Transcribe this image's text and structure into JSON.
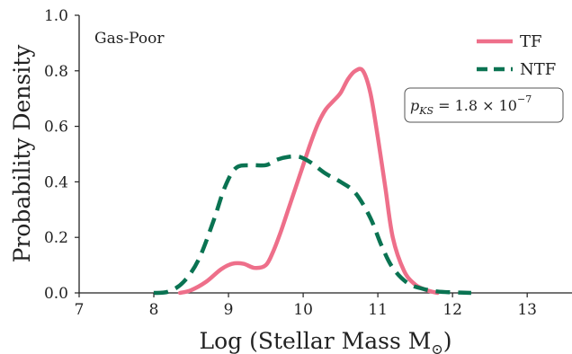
{
  "chart_data": {
    "type": "line",
    "title": "",
    "xlabel": "Log (Stellar Mass M",
    "xlabel_sub": "⊙",
    "xlabel_close": ")",
    "ylabel": "Probability Density",
    "xlim": [
      7,
      13.6
    ],
    "ylim": [
      0.0,
      1.0
    ],
    "xticks": [
      "7",
      "8",
      "9",
      "10",
      "11",
      "12",
      "13"
    ],
    "yticks": [
      "0.0",
      "0.2",
      "0.4",
      "0.6",
      "0.8",
      "1.0"
    ],
    "grid": false,
    "legend_position": "top-right",
    "annotation": "Gas-Poor",
    "stat_box": {
      "lhs": "p",
      "lhs_sub": "KS",
      "rhs": " = 1.8 × 10",
      "rhs_sup": "−7"
    },
    "series": [
      {
        "name": "TF",
        "color": "#ee6f8a",
        "style": "solid",
        "x": [
          8.35,
          8.5,
          8.7,
          8.9,
          9.05,
          9.2,
          9.35,
          9.5,
          9.6,
          9.7,
          9.8,
          9.9,
          10.0,
          10.1,
          10.2,
          10.3,
          10.4,
          10.5,
          10.6,
          10.7,
          10.8,
          10.9,
          11.0,
          11.1,
          11.2,
          11.35,
          11.5,
          11.65,
          11.8
        ],
        "y": [
          0.0,
          0.01,
          0.04,
          0.085,
          0.105,
          0.105,
          0.09,
          0.1,
          0.15,
          0.22,
          0.3,
          0.38,
          0.46,
          0.54,
          0.61,
          0.66,
          0.69,
          0.72,
          0.77,
          0.8,
          0.8,
          0.72,
          0.56,
          0.38,
          0.2,
          0.08,
          0.03,
          0.01,
          0.0
        ]
      },
      {
        "name": "NTF",
        "color": "#0a7352",
        "style": "dashed",
        "x": [
          8.0,
          8.2,
          8.4,
          8.6,
          8.8,
          8.95,
          9.1,
          9.3,
          9.5,
          9.65,
          9.8,
          9.95,
          10.1,
          10.3,
          10.5,
          10.7,
          10.9,
          11.05,
          11.2,
          11.4,
          11.6,
          11.8,
          12.0,
          12.25
        ],
        "y": [
          0.0,
          0.005,
          0.04,
          0.12,
          0.26,
          0.38,
          0.45,
          0.46,
          0.46,
          0.48,
          0.49,
          0.49,
          0.47,
          0.43,
          0.4,
          0.36,
          0.27,
          0.17,
          0.09,
          0.035,
          0.015,
          0.005,
          0.002,
          0.0
        ]
      }
    ]
  }
}
